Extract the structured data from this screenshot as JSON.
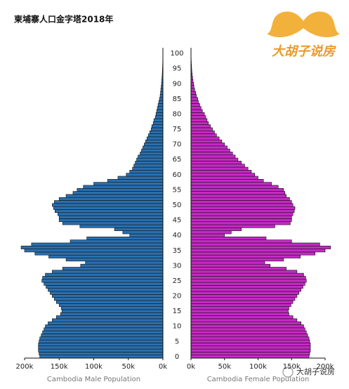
{
  "chart_data": {
    "type": "pyramid",
    "title": "柬埔寨人口金字塔2018年",
    "categories": [
      0,
      null,
      null,
      null,
      null,
      5,
      null,
      null,
      null,
      null,
      10,
      null,
      null,
      null,
      null,
      15,
      null,
      null,
      null,
      null,
      20,
      null,
      null,
      null,
      null,
      25,
      null,
      null,
      null,
      null,
      30,
      null,
      null,
      null,
      null,
      35,
      null,
      null,
      null,
      null,
      40,
      null,
      null,
      null,
      null,
      45,
      null,
      null,
      null,
      null,
      50,
      null,
      null,
      null,
      null,
      55,
      null,
      null,
      null,
      null,
      60,
      null,
      null,
      null,
      null,
      65,
      null,
      null,
      null,
      null,
      70,
      null,
      null,
      null,
      null,
      75,
      null,
      null,
      null,
      null,
      80,
      null,
      null,
      null,
      null,
      85,
      null,
      null,
      null,
      null,
      90,
      null,
      null,
      null,
      null,
      95,
      null,
      null,
      null,
      null,
      100
    ],
    "series": [
      {
        "name": "Cambodia Male Population",
        "color": "#2a6fae",
        "values": [
          178,
          179,
          180,
          180,
          180,
          179,
          178,
          176,
          174,
          172,
          170,
          166,
          160,
          154,
          148,
          146,
          147,
          150,
          154,
          157,
          160,
          163,
          166,
          169,
          172,
          175,
          174,
          170,
          160,
          145,
          119,
          112,
          140,
          165,
          185,
          200,
          205,
          190,
          134,
          110,
          48,
          58,
          70,
          120,
          145,
          150,
          150,
          152,
          156,
          158,
          160,
          157,
          150,
          140,
          130,
          124,
          115,
          100,
          80,
          65,
          53,
          48,
          44,
          42,
          40,
          38,
          36,
          33,
          31,
          29,
          27,
          25,
          23,
          21,
          19,
          17,
          16,
          14,
          13,
          11,
          10,
          9,
          8,
          7,
          6,
          5,
          4,
          3.5,
          3,
          2.5,
          2,
          1.6,
          1.3,
          1,
          0.8,
          0.6,
          0.4,
          0.3,
          0.2,
          0.1,
          0.1
        ]
      },
      {
        "name": "Cambodia Female Population",
        "color": "#c42ac4",
        "values": [
          176,
          177,
          178,
          178,
          178,
          177,
          176,
          174,
          172,
          170,
          168,
          164,
          158,
          152,
          146,
          145,
          146,
          149,
          152,
          155,
          158,
          161,
          164,
          167,
          170,
          172,
          171,
          168,
          158,
          142,
          118,
          110,
          138,
          163,
          185,
          200,
          208,
          192,
          150,
          112,
          50,
          60,
          75,
          125,
          148,
          150,
          150,
          152,
          154,
          155,
          152,
          150,
          147,
          142,
          140,
          138,
          130,
          120,
          108,
          100,
          95,
          90,
          85,
          80,
          75,
          70,
          66,
          62,
          58,
          54,
          50,
          46,
          42,
          38,
          35,
          32,
          29,
          26,
          24,
          22,
          20,
          17,
          15,
          13,
          11,
          10,
          8,
          7,
          5.5,
          4.5,
          4,
          3,
          2.4,
          1.8,
          1.3,
          1,
          0.7,
          0.5,
          0.3,
          0.2,
          0.1
        ]
      }
    ],
    "xlim": [
      0,
      200
    ],
    "xticks": [
      {
        "value": 0,
        "label": "0k"
      },
      {
        "value": 50,
        "label": "50k"
      },
      {
        "value": 100,
        "label": "100k"
      },
      {
        "value": 150,
        "label": "150k"
      },
      {
        "value": 200,
        "label": "200k"
      }
    ]
  },
  "brand": {
    "logo": "大胡子说房",
    "watermark": "大胡子说房"
  }
}
